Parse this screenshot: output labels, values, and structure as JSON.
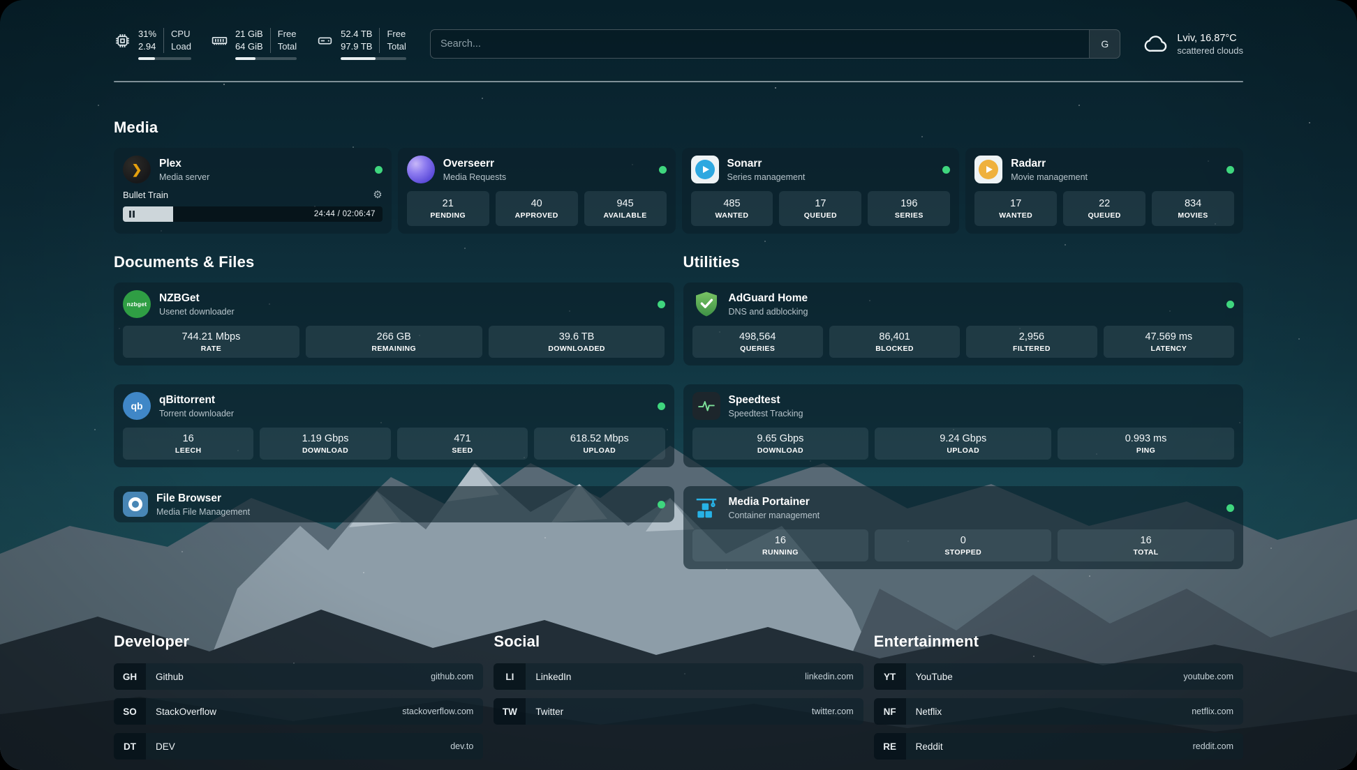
{
  "topbar": {
    "cpu": {
      "line1": "31%",
      "line2": "2.94",
      "label1": "CPU",
      "label2": "Load",
      "progress": 31
    },
    "memory": {
      "line1": "21 GiB",
      "line2": "64 GiB",
      "label1": "Free",
      "label2": "Total",
      "progress": 33
    },
    "disk": {
      "line1": "52.4 TB",
      "line2": "97.9 TB",
      "label1": "Free",
      "label2": "Total",
      "progress": 53
    },
    "search": {
      "placeholder": "Search...",
      "button_label": "G"
    },
    "weather": {
      "location": "Lviv, 16.87°C",
      "condition": "scattered clouds"
    }
  },
  "media": {
    "title": "Media",
    "plex": {
      "name": "Plex",
      "subtitle": "Media server",
      "now_playing": "Bullet Train",
      "time": "24:44 / 02:06:47",
      "progress": 19.5
    },
    "overseerr": {
      "name": "Overseerr",
      "subtitle": "Media Requests",
      "stats": [
        {
          "value": "21",
          "label": "PENDING"
        },
        {
          "value": "40",
          "label": "APPROVED"
        },
        {
          "value": "945",
          "label": "AVAILABLE"
        }
      ]
    },
    "sonarr": {
      "name": "Sonarr",
      "subtitle": "Series management",
      "stats": [
        {
          "value": "485",
          "label": "WANTED"
        },
        {
          "value": "17",
          "label": "QUEUED"
        },
        {
          "value": "196",
          "label": "SERIES"
        }
      ]
    },
    "radarr": {
      "name": "Radarr",
      "subtitle": "Movie management",
      "stats": [
        {
          "value": "17",
          "label": "WANTED"
        },
        {
          "value": "22",
          "label": "QUEUED"
        },
        {
          "value": "834",
          "label": "MOVIES"
        }
      ]
    }
  },
  "documents": {
    "title": "Documents & Files",
    "nzbget": {
      "name": "NZBGet",
      "subtitle": "Usenet downloader",
      "icon_text": "nzbget",
      "stats": [
        {
          "value": "744.21 Mbps",
          "label": "RATE"
        },
        {
          "value": "266 GB",
          "label": "REMAINING"
        },
        {
          "value": "39.6 TB",
          "label": "DOWNLOADED"
        }
      ]
    },
    "qbittorrent": {
      "name": "qBittorrent",
      "subtitle": "Torrent downloader",
      "icon_text": "qb",
      "stats": [
        {
          "value": "16",
          "label": "LEECH"
        },
        {
          "value": "1.19 Gbps",
          "label": "DOWNLOAD"
        },
        {
          "value": "471",
          "label": "SEED"
        },
        {
          "value": "618.52 Mbps",
          "label": "UPLOAD"
        }
      ]
    },
    "filebrowser": {
      "name": "File Browser",
      "subtitle": "Media File Management"
    }
  },
  "utilities": {
    "title": "Utilities",
    "adguard": {
      "name": "AdGuard Home",
      "subtitle": "DNS and adblocking",
      "stats": [
        {
          "value": "498,564",
          "label": "QUERIES"
        },
        {
          "value": "86,401",
          "label": "BLOCKED"
        },
        {
          "value": "2,956",
          "label": "FILTERED"
        },
        {
          "value": "47.569 ms",
          "label": "LATENCY"
        }
      ]
    },
    "speedtest": {
      "name": "Speedtest",
      "subtitle": "Speedtest Tracking",
      "stats": [
        {
          "value": "9.65 Gbps",
          "label": "DOWNLOAD"
        },
        {
          "value": "9.24 Gbps",
          "label": "UPLOAD"
        },
        {
          "value": "0.993 ms",
          "label": "PING"
        }
      ]
    },
    "portainer": {
      "name": "Media Portainer",
      "subtitle": "Container management",
      "stats": [
        {
          "value": "16",
          "label": "RUNNING"
        },
        {
          "value": "0",
          "label": "STOPPED"
        },
        {
          "value": "16",
          "label": "TOTAL"
        }
      ]
    }
  },
  "bookmarks": {
    "developer": {
      "title": "Developer",
      "items": [
        {
          "abbr": "GH",
          "name": "Github",
          "url": "github.com"
        },
        {
          "abbr": "SO",
          "name": "StackOverflow",
          "url": "stackoverflow.com"
        },
        {
          "abbr": "DT",
          "name": "DEV",
          "url": "dev.to"
        }
      ]
    },
    "social": {
      "title": "Social",
      "items": [
        {
          "abbr": "LI",
          "name": "LinkedIn",
          "url": "linkedin.com"
        },
        {
          "abbr": "TW",
          "name": "Twitter",
          "url": "twitter.com"
        }
      ]
    },
    "entertainment": {
      "title": "Entertainment",
      "items": [
        {
          "abbr": "YT",
          "name": "YouTube",
          "url": "youtube.com"
        },
        {
          "abbr": "NF",
          "name": "Netflix",
          "url": "netflix.com"
        },
        {
          "abbr": "RE",
          "name": "Reddit",
          "url": "reddit.com"
        }
      ]
    }
  }
}
